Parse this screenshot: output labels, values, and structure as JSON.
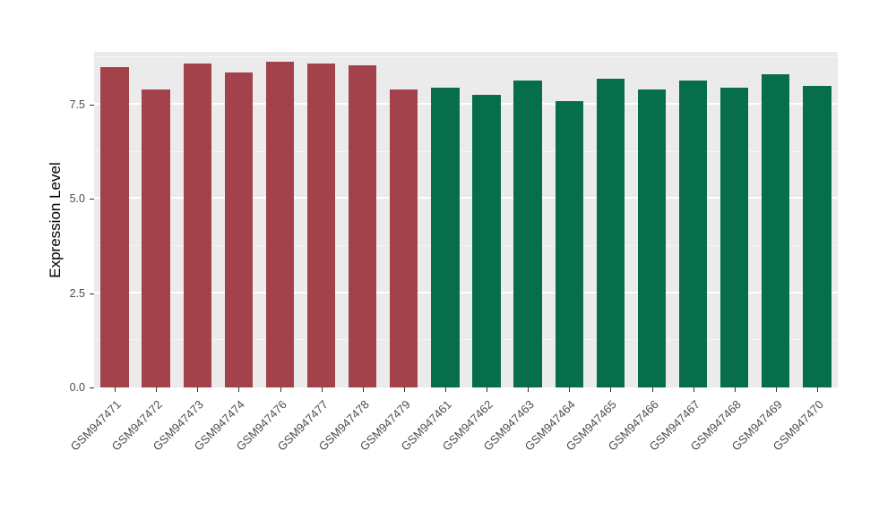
{
  "chart_data": {
    "type": "bar",
    "title": "",
    "xlabel": "",
    "ylabel": "Expression Level",
    "ylim": [
      0,
      8.9
    ],
    "yticks": [
      0.0,
      2.5,
      5.0,
      7.5
    ],
    "ytick_labels": [
      "0.0",
      "2.5",
      "5.0",
      "7.5"
    ],
    "minor_gridlines": [
      1.25,
      3.75,
      6.25,
      8.75
    ],
    "grid": true,
    "legend_position": "none",
    "plot_background": "#EBEBEB",
    "categories": [
      "GSM947471",
      "GSM947472",
      "GSM947473",
      "GSM947474",
      "GSM947476",
      "GSM947477",
      "GSM947478",
      "GSM947479",
      "GSM947461",
      "GSM947462",
      "GSM947463",
      "GSM947464",
      "GSM947465",
      "GSM947466",
      "GSM947467",
      "GSM947468",
      "GSM947469",
      "GSM947470"
    ],
    "values": [
      8.5,
      7.9,
      8.6,
      8.35,
      8.65,
      8.6,
      8.55,
      7.9,
      7.95,
      7.75,
      8.15,
      7.6,
      8.2,
      7.9,
      8.15,
      7.95,
      8.3,
      8.0
    ],
    "groups": [
      "group1",
      "group1",
      "group1",
      "group1",
      "group1",
      "group1",
      "group1",
      "group1",
      "group2",
      "group2",
      "group2",
      "group2",
      "group2",
      "group2",
      "group2",
      "group2",
      "group2",
      "group2"
    ],
    "group_colors": {
      "group1": "#A4424C",
      "group2": "#076E4C"
    }
  }
}
